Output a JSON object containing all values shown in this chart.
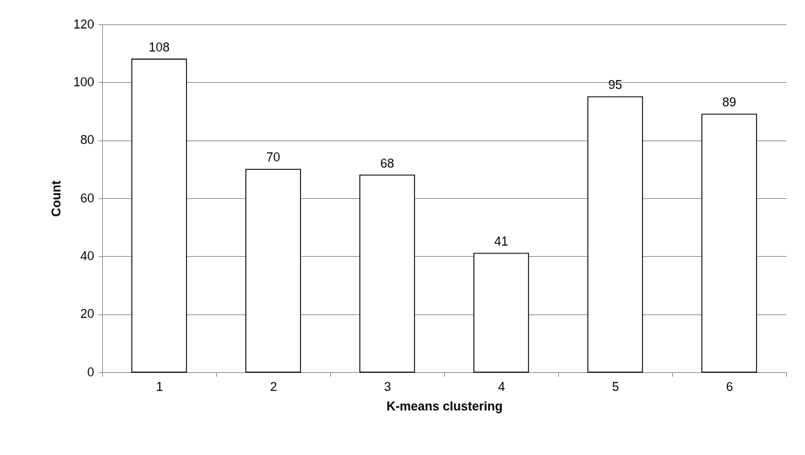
{
  "chart_data": {
    "type": "bar",
    "xlabel": "K-means clustering",
    "ylabel": "Count",
    "categories": [
      "1",
      "2",
      "3",
      "4",
      "5",
      "6"
    ],
    "values": [
      108,
      70,
      68,
      41,
      95,
      89
    ],
    "color": "#ffffff",
    "ylim": [
      0,
      120
    ],
    "yticks": [
      0,
      20,
      40,
      60,
      80,
      100,
      120
    ],
    "grid": "y",
    "data_labels": true
  }
}
